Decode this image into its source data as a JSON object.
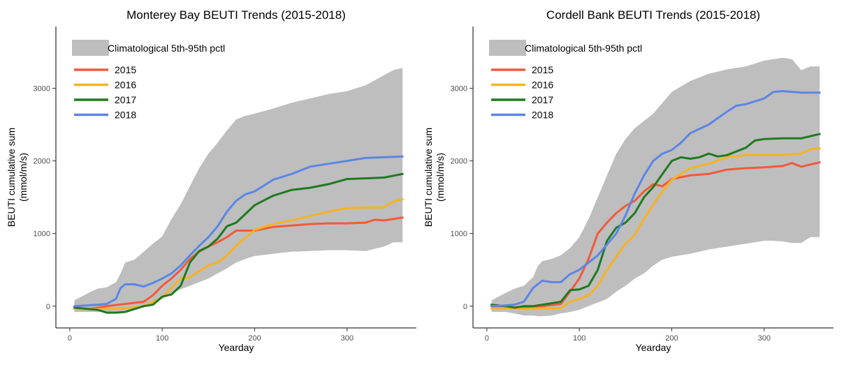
{
  "chart_data": [
    {
      "type": "line",
      "title": "Monterey Bay BEUTI Trends (2015-2018)",
      "xlabel": "Yearday",
      "ylabel_line1": "BEUTI cumulative sum",
      "ylabel_line2": "(mmol/m/s)",
      "xlim": [
        -15,
        375
      ],
      "ylim": [
        -300,
        3850
      ],
      "xticks": [
        0,
        100,
        200,
        300
      ],
      "yticks": [
        0,
        1000,
        2000,
        3000
      ],
      "xtick_labels": [
        "0",
        "100",
        "200",
        "300"
      ],
      "ytick_labels": [
        "0",
        "1000",
        "2000",
        "3000"
      ],
      "grid": false,
      "legend_position": "top-left",
      "band": {
        "name": "Climatological 5th-95th pctl",
        "color": "#bebebe",
        "x": [
          5,
          20,
          30,
          40,
          50,
          55,
          60,
          70,
          80,
          90,
          100,
          110,
          120,
          130,
          140,
          150,
          160,
          170,
          180,
          190,
          200,
          220,
          240,
          260,
          280,
          300,
          320,
          340,
          350,
          360
        ],
        "upper": [
          80,
          180,
          240,
          260,
          330,
          450,
          600,
          640,
          750,
          860,
          960,
          1200,
          1400,
          1650,
          1900,
          2100,
          2250,
          2420,
          2570,
          2620,
          2650,
          2720,
          2800,
          2860,
          2920,
          2960,
          3040,
          3180,
          3250,
          3280
        ],
        "lower": [
          -80,
          -80,
          -80,
          -85,
          -90,
          -85,
          -80,
          -30,
          -20,
          30,
          100,
          180,
          230,
          280,
          330,
          380,
          450,
          520,
          600,
          650,
          690,
          720,
          750,
          760,
          770,
          770,
          760,
          820,
          880,
          880
        ]
      },
      "series": [
        {
          "name": "2015",
          "color": "#f15a3b",
          "x": [
            5,
            20,
            40,
            60,
            80,
            90,
            100,
            110,
            120,
            130,
            140,
            150,
            160,
            170,
            180,
            200,
            220,
            240,
            260,
            280,
            300,
            320,
            330,
            340,
            350,
            360
          ],
          "y": [
            -40,
            -40,
            0,
            30,
            60,
            150,
            280,
            380,
            500,
            650,
            750,
            820,
            880,
            950,
            1040,
            1040,
            1090,
            1110,
            1130,
            1140,
            1140,
            1150,
            1190,
            1180,
            1200,
            1220
          ]
        },
        {
          "name": "2016",
          "color": "#f8b222",
          "x": [
            5,
            20,
            40,
            60,
            80,
            100,
            110,
            120,
            130,
            140,
            150,
            160,
            170,
            180,
            200,
            220,
            240,
            260,
            280,
            300,
            320,
            340,
            350,
            360
          ],
          "y": [
            -40,
            -40,
            -40,
            -30,
            0,
            120,
            250,
            380,
            400,
            480,
            560,
            600,
            700,
            830,
            1050,
            1130,
            1180,
            1240,
            1300,
            1350,
            1360,
            1360,
            1440,
            1470
          ]
        },
        {
          "name": "2017",
          "color": "#1f7a1f",
          "x": [
            5,
            20,
            30,
            40,
            50,
            60,
            70,
            80,
            90,
            100,
            110,
            120,
            130,
            140,
            150,
            160,
            170,
            180,
            200,
            220,
            240,
            260,
            280,
            300,
            320,
            340,
            360
          ],
          "y": [
            -20,
            -40,
            -50,
            -90,
            -90,
            -80,
            -40,
            0,
            20,
            130,
            160,
            280,
            600,
            760,
            820,
            930,
            1100,
            1150,
            1390,
            1520,
            1600,
            1630,
            1680,
            1750,
            1760,
            1770,
            1820
          ]
        },
        {
          "name": "2018",
          "color": "#5b86e5",
          "x": [
            5,
            20,
            30,
            40,
            50,
            55,
            60,
            70,
            80,
            90,
            100,
            110,
            120,
            130,
            140,
            150,
            160,
            170,
            180,
            190,
            200,
            220,
            240,
            260,
            280,
            300,
            320,
            340,
            360
          ],
          "y": [
            0,
            10,
            20,
            30,
            100,
            250,
            300,
            300,
            270,
            320,
            380,
            450,
            560,
            700,
            830,
            950,
            1100,
            1300,
            1450,
            1540,
            1580,
            1740,
            1820,
            1920,
            1960,
            2000,
            2040,
            2050,
            2060
          ]
        }
      ]
    },
    {
      "type": "line",
      "title": "Cordell Bank BEUTI Trends (2015-2018)",
      "xlabel": "Yearday",
      "ylabel_line1": "BEUTI cumulative sum",
      "ylabel_line2": "(mmol/m/s)",
      "xlim": [
        -15,
        375
      ],
      "ylim": [
        -300,
        3850
      ],
      "xticks": [
        0,
        100,
        200,
        300
      ],
      "yticks": [
        0,
        1000,
        2000,
        3000
      ],
      "xtick_labels": [
        "0",
        "100",
        "200",
        "300"
      ],
      "ytick_labels": [
        "0",
        "1000",
        "2000",
        "3000"
      ],
      "grid": false,
      "legend_position": "top-left",
      "band": {
        "name": "Climatological 5th-95th pctl",
        "color": "#bebebe",
        "x": [
          5,
          20,
          30,
          40,
          50,
          55,
          60,
          70,
          80,
          90,
          100,
          110,
          120,
          130,
          140,
          150,
          160,
          170,
          180,
          190,
          200,
          220,
          240,
          260,
          280,
          300,
          310,
          320,
          330,
          340,
          350,
          360
        ],
        "upper": [
          80,
          180,
          240,
          280,
          400,
          550,
          620,
          650,
          700,
          800,
          950,
          1200,
          1500,
          1800,
          2100,
          2300,
          2450,
          2550,
          2650,
          2800,
          2950,
          3100,
          3200,
          3260,
          3300,
          3380,
          3400,
          3420,
          3400,
          3250,
          3300,
          3300
        ],
        "lower": [
          -80,
          -80,
          -100,
          -130,
          -130,
          -140,
          -140,
          -130,
          -100,
          -80,
          -50,
          0,
          50,
          100,
          200,
          280,
          380,
          450,
          560,
          640,
          680,
          720,
          780,
          820,
          860,
          900,
          900,
          890,
          870,
          870,
          950,
          950
        ]
      },
      "series": [
        {
          "name": "2015",
          "color": "#f15a3b",
          "x": [
            5,
            20,
            40,
            60,
            80,
            90,
            100,
            110,
            120,
            130,
            140,
            150,
            160,
            170,
            180,
            190,
            200,
            220,
            240,
            260,
            280,
            300,
            320,
            330,
            340,
            350,
            360
          ],
          "y": [
            0,
            -20,
            -20,
            0,
            30,
            200,
            380,
            650,
            1000,
            1150,
            1280,
            1380,
            1450,
            1580,
            1680,
            1650,
            1750,
            1800,
            1820,
            1880,
            1900,
            1910,
            1930,
            1970,
            1920,
            1950,
            1980
          ]
        },
        {
          "name": "2016",
          "color": "#f8b222",
          "x": [
            5,
            20,
            40,
            60,
            80,
            90,
            100,
            110,
            120,
            130,
            140,
            150,
            160,
            170,
            180,
            190,
            200,
            220,
            240,
            260,
            280,
            300,
            320,
            340,
            350,
            360
          ],
          "y": [
            -30,
            -30,
            -40,
            -30,
            -30,
            60,
            100,
            150,
            280,
            500,
            680,
            860,
            980,
            1200,
            1400,
            1580,
            1740,
            1900,
            1960,
            2050,
            2080,
            2080,
            2080,
            2100,
            2160,
            2170
          ]
        },
        {
          "name": "2017",
          "color": "#1f7a1f",
          "x": [
            5,
            20,
            30,
            40,
            50,
            60,
            70,
            80,
            90,
            100,
            110,
            120,
            130,
            140,
            150,
            160,
            170,
            180,
            190,
            200,
            210,
            220,
            230,
            240,
            250,
            260,
            280,
            290,
            300,
            320,
            340,
            360
          ],
          "y": [
            20,
            0,
            -20,
            0,
            0,
            20,
            40,
            60,
            220,
            230,
            280,
            500,
            900,
            1080,
            1150,
            1280,
            1500,
            1640,
            1820,
            2000,
            2050,
            2030,
            2050,
            2100,
            2060,
            2080,
            2180,
            2280,
            2300,
            2310,
            2310,
            2370
          ]
        },
        {
          "name": "2018",
          "color": "#5b86e5",
          "x": [
            5,
            20,
            30,
            40,
            50,
            60,
            70,
            80,
            90,
            100,
            110,
            120,
            130,
            140,
            150,
            160,
            170,
            180,
            190,
            200,
            210,
            220,
            240,
            260,
            270,
            280,
            300,
            310,
            320,
            340,
            360
          ],
          "y": [
            0,
            10,
            20,
            60,
            250,
            350,
            330,
            330,
            440,
            500,
            600,
            700,
            850,
            1000,
            1250,
            1550,
            1800,
            2000,
            2100,
            2150,
            2250,
            2380,
            2500,
            2680,
            2760,
            2780,
            2860,
            2950,
            2960,
            2940,
            2940
          ]
        }
      ]
    }
  ]
}
